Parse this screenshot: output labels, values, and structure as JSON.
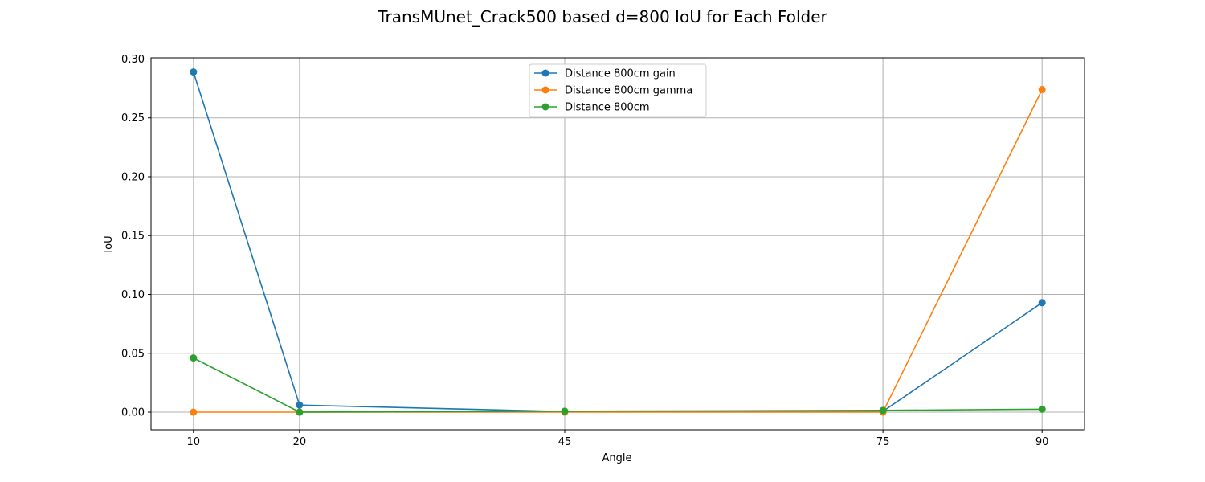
{
  "chart_data": {
    "type": "line",
    "title": "TransMUnet_Crack500 based d=800 IoU for Each Folder",
    "xlabel": "Angle",
    "ylabel": "IoU",
    "x": [
      10,
      20,
      45,
      75,
      90
    ],
    "x_tick_labels": [
      "10",
      "20",
      "45",
      "75",
      "90"
    ],
    "xlim": [
      6,
      94
    ],
    "ylim": [
      -0.015,
      0.301
    ],
    "y_ticks": [
      0.0,
      0.05,
      0.1,
      0.15,
      0.2,
      0.25,
      0.3
    ],
    "y_tick_labels": [
      "0.00",
      "0.05",
      "0.10",
      "0.15",
      "0.20",
      "0.25",
      "0.30"
    ],
    "grid": true,
    "legend_position": "top-center",
    "series": [
      {
        "name": "Distance 800cm gain",
        "color": "#1f77b4",
        "values": [
          0.289,
          0.006,
          0.0005,
          0.0007,
          0.093
        ]
      },
      {
        "name": "Distance 800cm gamma",
        "color": "#ff7f0e",
        "values": [
          0.0,
          0.0,
          0.0,
          0.0,
          0.274
        ]
      },
      {
        "name": "Distance 800cm",
        "color": "#2ca02c",
        "values": [
          0.046,
          0.0,
          0.0008,
          0.0015,
          0.0025
        ]
      }
    ]
  }
}
